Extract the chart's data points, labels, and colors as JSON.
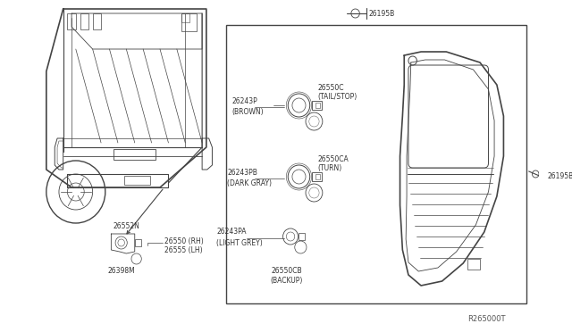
{
  "bg_color": "#ffffff",
  "line_color": "#444444",
  "box_bg": "#ffffff",
  "ref_code": "R265000T",
  "parts_labels": {
    "26550C": "(TAIL/STOP)",
    "26243P": "(BROWN)",
    "26550CA": "(TURN)",
    "26243PB": "(DARK GRAY)",
    "26243PA": "(LIGHT GREY)",
    "26550CB": "(BACKUP)",
    "26552N": "",
    "26398M": "",
    "26195B_top": "26195B",
    "26195B_right": "26195B",
    "26550RH": "26550 (RH)",
    "26555LH": "26555 (LH)"
  }
}
